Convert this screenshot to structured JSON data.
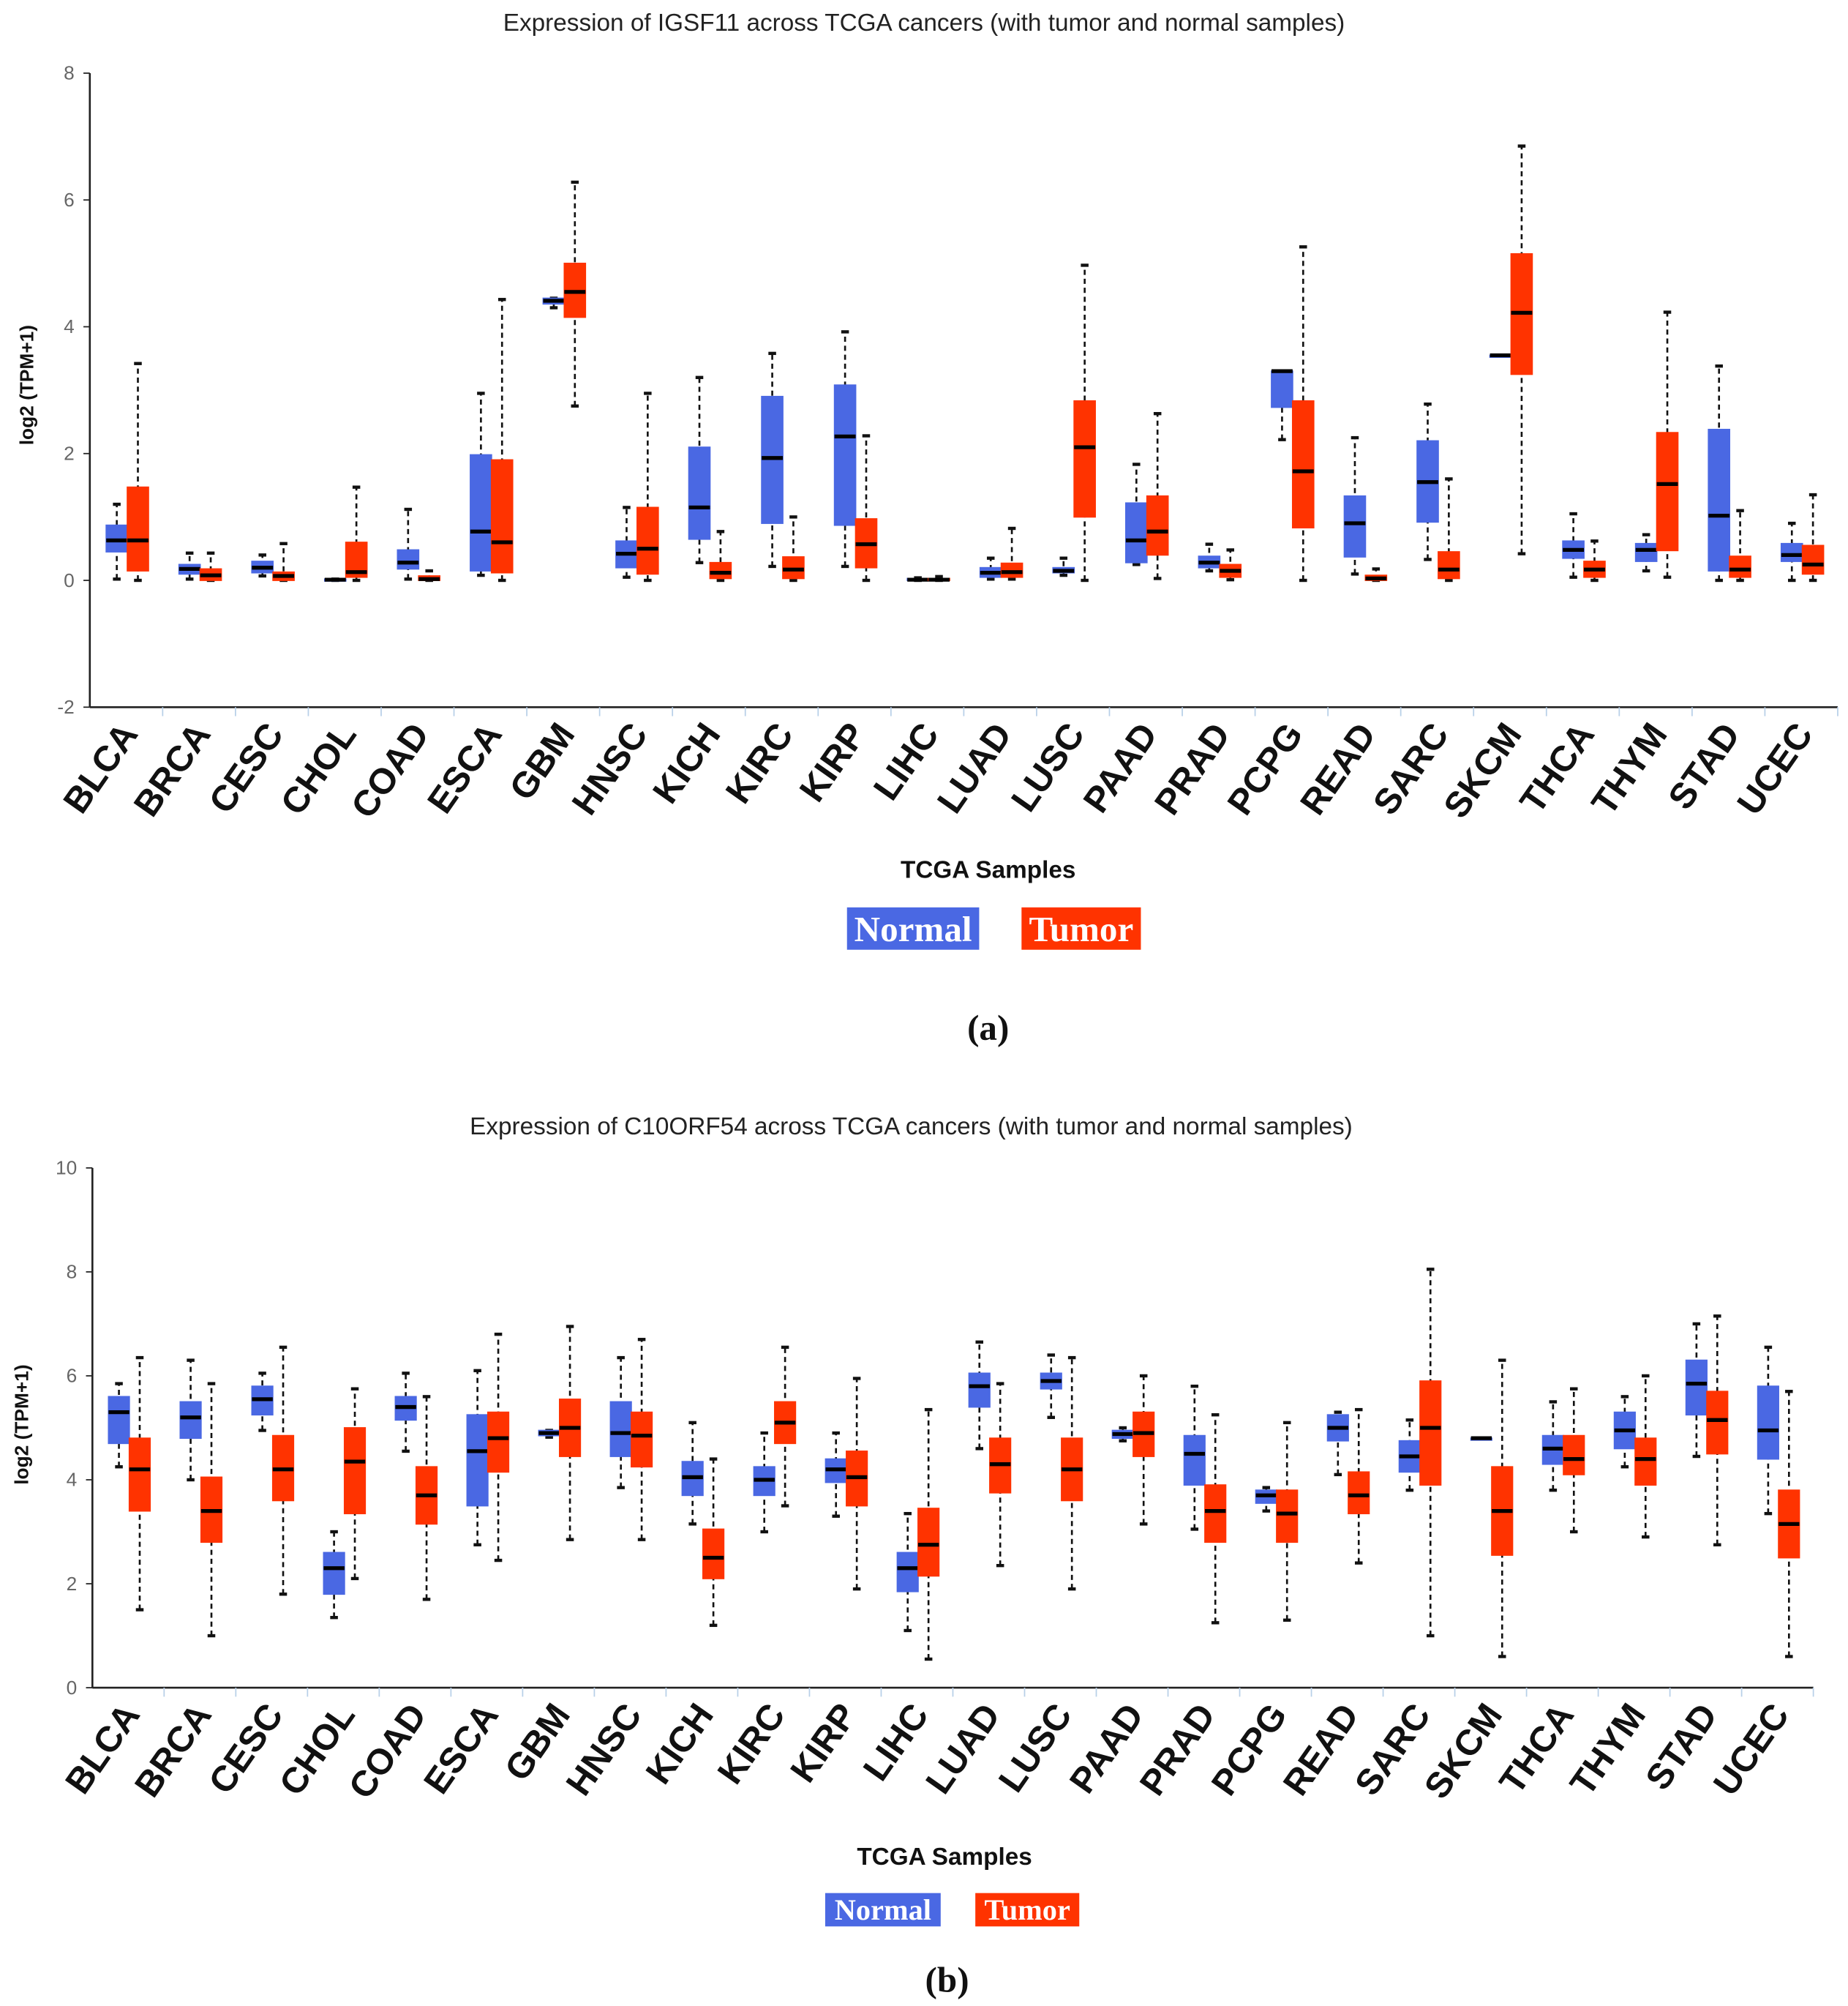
{
  "colors": {
    "normal": "#4a68e3",
    "tumor": "#ff3300",
    "median": "#000000"
  },
  "chart_data": [
    {
      "type": "box",
      "panel_label": "(a)",
      "title": "Expression of IGSF11 across TCGA cancers (with tumor and normal samples)",
      "xlabel": "TCGA Samples",
      "ylabel": "log2 (TPM+1)",
      "ylim": [
        -2,
        8
      ],
      "yticks": [
        8,
        6,
        4,
        2,
        0,
        -2
      ],
      "legend": [
        "Normal",
        "Tumor"
      ],
      "legend_position": "bottom-center",
      "box_format": [
        "whisker_low",
        "q1",
        "median",
        "q3",
        "whisker_high"
      ],
      "categories": [
        "BLCA",
        "BRCA",
        "CESC",
        "CHOL",
        "COAD",
        "ESCA",
        "GBM",
        "HNSC",
        "KICH",
        "KIRC",
        "KIRP",
        "LIHC",
        "LUAD",
        "LUSC",
        "PAAD",
        "PRAD",
        "PCPG",
        "READ",
        "SARC",
        "SKCM",
        "THCA",
        "THYM",
        "STAD",
        "UCEC"
      ],
      "series": [
        {
          "name": "Normal",
          "values": [
            [
              0.02,
              0.45,
              0.63,
              0.87,
              1.2
            ],
            [
              0.02,
              0.1,
              0.18,
              0.25,
              0.43
            ],
            [
              0.07,
              0.12,
              0.2,
              0.3,
              0.4
            ],
            [
              0,
              0,
              0.01,
              0.02,
              0.02
            ],
            [
              0.02,
              0.18,
              0.28,
              0.48,
              1.12
            ],
            [
              0.08,
              0.15,
              0.77,
              1.98,
              2.95
            ],
            [
              4.3,
              4.36,
              4.41,
              4.45,
              4.45
            ],
            [
              0.05,
              0.2,
              0.42,
              0.62,
              1.15
            ],
            [
              0.28,
              0.65,
              1.15,
              2.1,
              3.2
            ],
            [
              0.22,
              0.9,
              1.93,
              2.9,
              3.58
            ],
            [
              0.22,
              0.87,
              2.27,
              3.08,
              3.92
            ],
            [
              0,
              0,
              0.01,
              0.03,
              0.04
            ],
            [
              0.02,
              0.05,
              0.12,
              0.2,
              0.35
            ],
            [
              0.08,
              0.12,
              0.15,
              0.2,
              0.35
            ],
            [
              0.25,
              0.28,
              0.63,
              1.22,
              1.83
            ],
            [
              0.15,
              0.2,
              0.28,
              0.38,
              0.57
            ],
            [
              2.22,
              2.73,
              3.3,
              3.3,
              3.3
            ],
            [
              0.1,
              0.37,
              0.9,
              1.33,
              2.25
            ],
            [
              0.33,
              0.92,
              1.55,
              2.2,
              2.78
            ],
            [
              3.55,
              3.55,
              3.55,
              3.55,
              3.55
            ],
            [
              0.05,
              0.35,
              0.48,
              0.62,
              1.05
            ],
            [
              0.15,
              0.3,
              0.48,
              0.58,
              0.72
            ],
            [
              0,
              0.15,
              1.02,
              2.38,
              3.38
            ],
            [
              0,
              0.3,
              0.4,
              0.58,
              0.9
            ]
          ]
        },
        {
          "name": "Tumor",
          "values": [
            [
              0,
              0.15,
              0.63,
              1.47,
              3.42
            ],
            [
              0,
              0,
              0.08,
              0.18,
              0.43
            ],
            [
              0,
              0,
              0.07,
              0.13,
              0.58
            ],
            [
              0,
              0.05,
              0.13,
              0.6,
              1.47
            ],
            [
              0,
              0,
              0.02,
              0.07,
              0.15
            ],
            [
              0,
              0.12,
              0.6,
              1.9,
              4.43
            ],
            [
              2.75,
              4.15,
              4.55,
              5.0,
              6.28
            ],
            [
              0,
              0.1,
              0.5,
              1.15,
              2.95
            ],
            [
              0,
              0.03,
              0.12,
              0.28,
              0.77
            ],
            [
              0,
              0.03,
              0.17,
              0.37,
              1.0
            ],
            [
              0,
              0.2,
              0.57,
              0.97,
              2.28
            ],
            [
              0,
              0,
              0.01,
              0.03,
              0.06
            ],
            [
              0.02,
              0.05,
              0.13,
              0.27,
              0.82
            ],
            [
              0,
              1.0,
              2.1,
              2.83,
              4.97
            ],
            [
              0.03,
              0.4,
              0.77,
              1.33,
              2.63
            ],
            [
              0.01,
              0.05,
              0.15,
              0.25,
              0.48
            ],
            [
              0,
              0.83,
              1.72,
              2.83,
              5.26
            ],
            [
              0,
              0,
              0.03,
              0.08,
              0.18
            ],
            [
              0,
              0.03,
              0.17,
              0.45,
              1.6
            ],
            [
              0.42,
              3.25,
              4.22,
              5.15,
              6.85
            ],
            [
              0,
              0.05,
              0.17,
              0.3,
              0.62
            ],
            [
              0.05,
              0.47,
              1.52,
              2.33,
              4.23
            ],
            [
              0,
              0.05,
              0.17,
              0.38,
              1.1
            ],
            [
              0,
              0.1,
              0.25,
              0.55,
              1.35
            ]
          ]
        }
      ]
    },
    {
      "type": "box",
      "panel_label": "(b)",
      "title": "Expression of C10ORF54 across TCGA cancers (with tumor and normal samples)",
      "xlabel": "TCGA Samples",
      "ylabel": "log2 (TPM+1)",
      "ylim": [
        0,
        10
      ],
      "yticks": [
        10,
        8,
        6,
        4,
        2,
        0
      ],
      "legend": [
        "Normal",
        "Tumor"
      ],
      "legend_position": "bottom-center",
      "box_format": [
        "whisker_low",
        "q1",
        "median",
        "q3",
        "whisker_high"
      ],
      "categories": [
        "BLCA",
        "BRCA",
        "CESC",
        "CHOL",
        "COAD",
        "ESCA",
        "GBM",
        "HNSC",
        "KICH",
        "KIRC",
        "KIRP",
        "LIHC",
        "LUAD",
        "LUSC",
        "PAAD",
        "PRAD",
        "PCPG",
        "READ",
        "SARC",
        "SKCM",
        "THCA",
        "THYM",
        "STAD",
        "UCEC"
      ],
      "series": [
        {
          "name": "Normal",
          "values": [
            [
              4.25,
              4.7,
              5.3,
              5.6,
              5.85
            ],
            [
              4.0,
              4.8,
              5.2,
              5.5,
              6.3
            ],
            [
              4.95,
              5.25,
              5.55,
              5.8,
              6.05
            ],
            [
              1.35,
              1.8,
              2.3,
              2.6,
              3.0
            ],
            [
              4.55,
              5.15,
              5.4,
              5.6,
              6.05
            ],
            [
              2.75,
              3.5,
              4.55,
              5.25,
              6.1
            ],
            [
              4.82,
              4.85,
              4.9,
              4.95,
              4.95
            ],
            [
              3.85,
              4.45,
              4.9,
              5.5,
              6.35
            ],
            [
              3.15,
              3.7,
              4.05,
              4.35,
              5.1
            ],
            [
              3.0,
              3.7,
              4.0,
              4.25,
              4.9
            ],
            [
              3.3,
              3.95,
              4.2,
              4.4,
              4.9
            ],
            [
              1.1,
              1.85,
              2.3,
              2.6,
              3.35
            ],
            [
              4.6,
              5.4,
              5.8,
              6.05,
              6.65
            ],
            [
              5.2,
              5.75,
              5.9,
              6.05,
              6.4
            ],
            [
              4.75,
              4.8,
              4.88,
              4.95,
              5.0
            ],
            [
              3.05,
              3.9,
              4.5,
              4.85,
              5.8
            ],
            [
              3.4,
              3.55,
              3.7,
              3.8,
              3.85
            ],
            [
              4.1,
              4.75,
              5.0,
              5.25,
              5.3
            ],
            [
              3.8,
              4.15,
              4.45,
              4.75,
              5.15
            ],
            [
              4.8,
              4.8,
              4.8,
              4.8,
              4.8
            ],
            [
              3.8,
              4.3,
              4.6,
              4.85,
              5.5
            ],
            [
              4.25,
              4.6,
              4.95,
              5.3,
              5.6
            ],
            [
              4.45,
              5.25,
              5.85,
              6.3,
              7.0
            ],
            [
              3.35,
              4.4,
              4.95,
              5.8,
              6.55
            ]
          ]
        },
        {
          "name": "Tumor",
          "values": [
            [
              1.5,
              3.4,
              4.2,
              4.8,
              6.35
            ],
            [
              1.0,
              2.8,
              3.4,
              4.05,
              5.85
            ],
            [
              1.8,
              3.6,
              4.2,
              4.85,
              6.55
            ],
            [
              2.1,
              3.35,
              4.35,
              5.0,
              5.75
            ],
            [
              1.7,
              3.15,
              3.7,
              4.25,
              5.6
            ],
            [
              2.45,
              4.15,
              4.8,
              5.3,
              6.8
            ],
            [
              2.85,
              4.45,
              5.0,
              5.55,
              6.95
            ],
            [
              2.85,
              4.25,
              4.85,
              5.3,
              6.7
            ],
            [
              1.2,
              2.1,
              2.5,
              3.05,
              4.4
            ],
            [
              3.5,
              4.7,
              5.1,
              5.5,
              6.55
            ],
            [
              1.9,
              3.5,
              4.05,
              4.55,
              5.95
            ],
            [
              0.55,
              2.15,
              2.75,
              3.45,
              5.35
            ],
            [
              2.35,
              3.75,
              4.3,
              4.8,
              5.85
            ],
            [
              1.9,
              3.6,
              4.2,
              4.8,
              6.35
            ],
            [
              3.15,
              4.45,
              4.9,
              5.3,
              6.0
            ],
            [
              1.25,
              2.8,
              3.4,
              3.9,
              5.25
            ],
            [
              1.3,
              2.8,
              3.35,
              3.8,
              5.1
            ],
            [
              2.4,
              3.35,
              3.7,
              4.15,
              5.35
            ],
            [
              1.0,
              3.9,
              5.0,
              5.9,
              8.05
            ],
            [
              0.6,
              2.55,
              3.4,
              4.25,
              6.3
            ],
            [
              3.0,
              4.1,
              4.4,
              4.85,
              5.75
            ],
            [
              2.9,
              3.9,
              4.4,
              4.8,
              6.0
            ],
            [
              2.75,
              4.5,
              5.15,
              5.7,
              7.15
            ],
            [
              0.6,
              2.5,
              3.15,
              3.8,
              5.7
            ]
          ]
        }
      ]
    }
  ]
}
